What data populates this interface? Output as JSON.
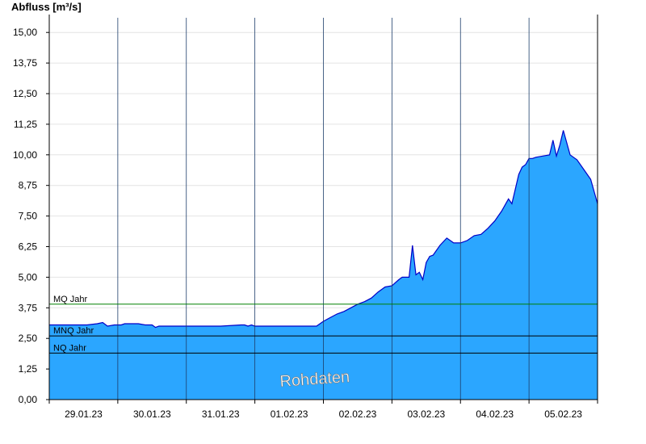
{
  "chart_data": {
    "type": "area",
    "title": "",
    "ylabel": "Abfluss [m³/s]",
    "xlabel": "",
    "ylim": [
      0,
      15.6
    ],
    "y_ticks": [
      "0,00",
      "1,25",
      "2,50",
      "3,75",
      "5,00",
      "6,25",
      "7,50",
      "8,75",
      "10,00",
      "11,25",
      "12,50",
      "13,75",
      "15,00"
    ],
    "x_tick_labels": [
      "29.01.23",
      "30.01.23",
      "31.01.23",
      "01.02.23",
      "02.02.23",
      "03.02.23",
      "04.02.23",
      "05.02.23"
    ],
    "x_range_days": [
      0,
      8
    ],
    "grid": "horizontal light grid, vertical day separators",
    "reference_lines": [
      {
        "name": "MQ Jahr",
        "value": 3.9,
        "color": "#008000"
      },
      {
        "name": "MNQ Jahr",
        "value": 2.6,
        "color": "#000000"
      },
      {
        "name": "NQ Jahr",
        "value": 1.9,
        "color": "#000000"
      }
    ],
    "watermark": "Rohdaten",
    "fill_color": "#2ba6ff",
    "line_color": "#0000c8",
    "series": [
      {
        "x": [
          0,
          0.3,
          0.55,
          0.7,
          0.78,
          0.85,
          0.95,
          1.05,
          1.1,
          1.2,
          1.3,
          1.4,
          1.5,
          1.55,
          1.6,
          1.7,
          2.0,
          2.5,
          2.8,
          2.85,
          2.9,
          2.95,
          3.0,
          3.5,
          3.9,
          4.0,
          4.1,
          4.2,
          4.3,
          4.4,
          4.5,
          4.6,
          4.7,
          4.8,
          4.9,
          5.0,
          5.1,
          5.15,
          5.2,
          5.25,
          5.3,
          5.35,
          5.4,
          5.45,
          5.5,
          5.55,
          5.6,
          5.7,
          5.8,
          5.9,
          6.0,
          6.1,
          6.2,
          6.3,
          6.4,
          6.5,
          6.6,
          6.7,
          6.75,
          6.85,
          6.9,
          6.95,
          7.0,
          7.05,
          7.1,
          7.2,
          7.3,
          7.35,
          7.4,
          7.45,
          7.5,
          7.6,
          7.7,
          7.8,
          7.9,
          8.0
        ],
        "y": [
          3.05,
          3.05,
          3.05,
          3.1,
          3.15,
          3.0,
          3.05,
          3.05,
          3.1,
          3.1,
          3.1,
          3.05,
          3.05,
          2.95,
          3.0,
          3.0,
          3.0,
          3.0,
          3.05,
          3.05,
          3.0,
          3.05,
          3.0,
          3.0,
          3.0,
          3.2,
          3.35,
          3.5,
          3.6,
          3.75,
          3.9,
          4.0,
          4.15,
          4.4,
          4.6,
          4.65,
          4.9,
          5.0,
          5.0,
          5.0,
          6.3,
          5.1,
          5.2,
          4.9,
          5.6,
          5.85,
          5.9,
          6.3,
          6.6,
          6.4,
          6.4,
          6.5,
          6.7,
          6.75,
          7.0,
          7.3,
          7.7,
          8.2,
          8.0,
          9.2,
          9.5,
          9.6,
          9.85,
          9.85,
          9.9,
          9.95,
          10.0,
          10.6,
          9.95,
          10.4,
          11.0,
          10.0,
          9.8,
          9.4,
          9.0,
          8.0
        ]
      }
    ]
  }
}
